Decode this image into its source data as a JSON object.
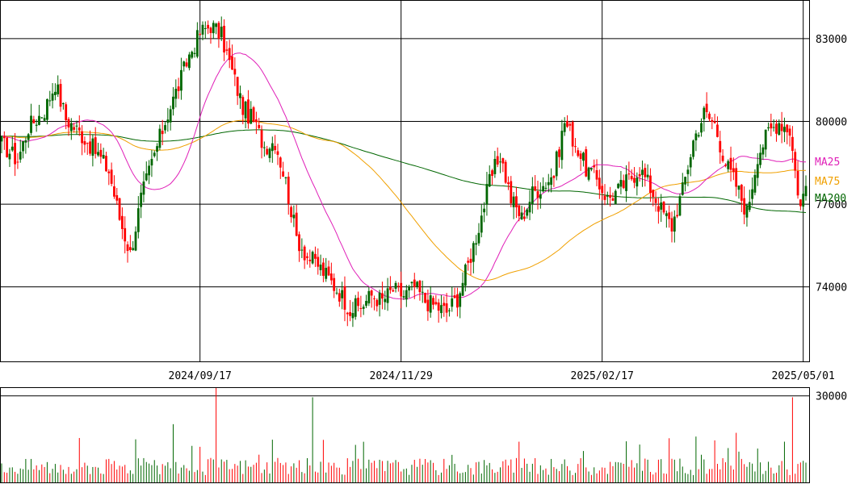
{
  "chart_data": {
    "type": "candlestick",
    "x_ticks": [
      "2024/09/17",
      "2024/11/29",
      "2025/02/17",
      "2025/05/01"
    ],
    "price_axis": {
      "ticks": [
        74000,
        77000,
        80000,
        83000
      ],
      "ylim": [
        71300,
        84400
      ]
    },
    "volume_axis": {
      "ticks": [
        30000
      ],
      "ylim": [
        0,
        33000
      ]
    },
    "legend": [
      {
        "name": "MA25",
        "color": "#e020b8"
      },
      {
        "name": "MA75",
        "color": "#f0a000"
      },
      {
        "name": "MA200",
        "color": "#006600"
      }
    ],
    "colors": {
      "up": "#006600",
      "down": "#ff0000",
      "grid": "#000000"
    },
    "trend_points": [
      [
        0,
        79200
      ],
      [
        6,
        78600
      ],
      [
        10,
        79800
      ],
      [
        16,
        80400
      ],
      [
        20,
        81400
      ],
      [
        24,
        80100
      ],
      [
        30,
        79500
      ],
      [
        36,
        78800
      ],
      [
        40,
        78200
      ],
      [
        44,
        76500
      ],
      [
        48,
        75200
      ],
      [
        52,
        77200
      ],
      [
        56,
        78500
      ],
      [
        62,
        80300
      ],
      [
        66,
        81300
      ],
      [
        70,
        82400
      ],
      [
        74,
        83200
      ],
      [
        78,
        83500
      ],
      [
        82,
        83100
      ],
      [
        86,
        81800
      ],
      [
        90,
        80500
      ],
      [
        94,
        80000
      ],
      [
        98,
        79100
      ],
      [
        102,
        79300
      ],
      [
        106,
        77800
      ],
      [
        110,
        75800
      ],
      [
        114,
        75100
      ],
      [
        118,
        74800
      ],
      [
        122,
        74300
      ],
      [
        126,
        73800
      ],
      [
        130,
        73200
      ],
      [
        134,
        73300
      ],
      [
        138,
        73700
      ],
      [
        142,
        73500
      ],
      [
        146,
        73900
      ],
      [
        150,
        73700
      ],
      [
        154,
        74000
      ],
      [
        158,
        73500
      ],
      [
        162,
        73300
      ],
      [
        166,
        73100
      ],
      [
        170,
        73600
      ],
      [
        174,
        74800
      ],
      [
        178,
        76200
      ],
      [
        182,
        77800
      ],
      [
        186,
        78800
      ],
      [
        190,
        77200
      ],
      [
        194,
        76500
      ],
      [
        198,
        77400
      ],
      [
        202,
        77700
      ],
      [
        206,
        78100
      ],
      [
        210,
        80000
      ],
      [
        214,
        79200
      ],
      [
        218,
        78300
      ],
      [
        222,
        77900
      ],
      [
        226,
        77200
      ],
      [
        230,
        77500
      ],
      [
        234,
        77900
      ],
      [
        238,
        78300
      ],
      [
        242,
        77600
      ],
      [
        246,
        76800
      ],
      [
        250,
        76200
      ],
      [
        254,
        77500
      ],
      [
        258,
        79300
      ],
      [
        262,
        80300
      ],
      [
        266,
        79900
      ],
      [
        270,
        78500
      ],
      [
        274,
        77700
      ],
      [
        278,
        76700
      ],
      [
        282,
        78800
      ],
      [
        286,
        79600
      ],
      [
        290,
        80000
      ],
      [
        294,
        79700
      ],
      [
        296,
        78200
      ],
      [
        298,
        76900
      ],
      [
        300,
        77700
      ]
    ],
    "volume_spikes": [
      {
        "i": 80,
        "v": 33000
      },
      {
        "i": 116,
        "v": 29500
      },
      {
        "i": 295,
        "v": 29500
      }
    ]
  }
}
